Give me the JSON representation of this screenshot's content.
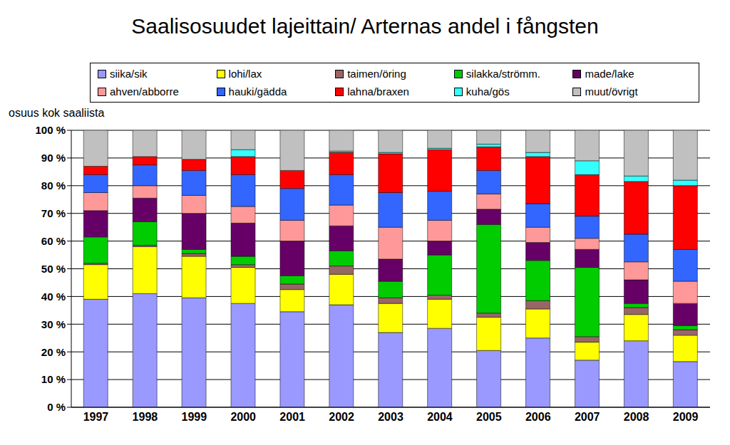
{
  "chart_data": {
    "type": "bar",
    "stacked": true,
    "grid": true,
    "legend": "top",
    "title": "Saalisosuudet lajeittain/ Arternas andel i fångsten",
    "ylabel": "osuus kok saaliista",
    "categories": [
      "1997",
      "1998",
      "1999",
      "2000",
      "2001",
      "2002",
      "2003",
      "2004",
      "2005",
      "2006",
      "2007",
      "2008",
      "2009"
    ],
    "ylim": [
      0,
      100
    ],
    "yticks": [
      {
        "value": 0,
        "label": "0 %"
      },
      {
        "value": 10,
        "label": "10 %"
      },
      {
        "value": 20,
        "label": "20 %"
      },
      {
        "value": 30,
        "label": "30 %"
      },
      {
        "value": 40,
        "label": "40 %"
      },
      {
        "value": 50,
        "label": "50 %"
      },
      {
        "value": 60,
        "label": "60 %"
      },
      {
        "value": 70,
        "label": "70 %"
      },
      {
        "value": 80,
        "label": "80 %"
      },
      {
        "value": 90,
        "label": "90 %"
      },
      {
        "value": 100,
        "label": "100 %"
      }
    ],
    "series": [
      {
        "name": "siika/sik",
        "color": "#9999ff",
        "values": [
          39,
          41,
          39.5,
          37.5,
          34.5,
          37,
          27,
          28.5,
          20.5,
          25,
          17,
          24,
          16.5
        ]
      },
      {
        "name": "lohi/lax",
        "color": "#ffff00",
        "values": [
          12.5,
          17,
          15,
          13,
          8,
          11,
          10.5,
          10.5,
          12,
          10.5,
          6.5,
          9.5,
          9.5
        ]
      },
      {
        "name": "taimen/öring",
        "color": "#996666",
        "values": [
          0.5,
          0.5,
          1,
          1,
          2,
          3,
          2,
          1.5,
          1.5,
          3,
          2,
          2.5,
          2
        ]
      },
      {
        "name": "silakka/strömm.",
        "color": "#00cc00",
        "values": [
          9.5,
          8.5,
          1.5,
          3,
          3,
          5.5,
          6,
          14.5,
          32,
          14.5,
          25,
          1.5,
          1.5
        ]
      },
      {
        "name": "made/lake",
        "color": "#660066",
        "values": [
          9.5,
          8.5,
          13,
          12,
          12.5,
          9,
          8,
          5,
          5.5,
          6.5,
          6.5,
          8.5,
          8
        ]
      },
      {
        "name": "ahven/abborre",
        "color": "#ff9999",
        "values": [
          6.5,
          4.5,
          6.5,
          6,
          7.5,
          7.5,
          11.5,
          7.5,
          5.5,
          5.5,
          4,
          6.5,
          8
        ]
      },
      {
        "name": "hauki/gädda",
        "color": "#3366ff",
        "values": [
          6.5,
          7.5,
          9,
          11.5,
          11.5,
          11,
          12.5,
          10.5,
          8.5,
          8.5,
          8,
          10,
          11.5
        ]
      },
      {
        "name": "lahna/braxen",
        "color": "#ff0000",
        "values": [
          3,
          3,
          4,
          6.5,
          6.5,
          8,
          14,
          15,
          8.5,
          17,
          15,
          19,
          23
        ]
      },
      {
        "name": "kuha/gös",
        "color": "#33ffff",
        "values": [
          0,
          0,
          0,
          2.5,
          0,
          0.5,
          0.5,
          0.5,
          1,
          1.5,
          5,
          2,
          2
        ]
      },
      {
        "name": "muut/övrigt",
        "color": "#c0c0c0",
        "values": [
          13,
          9.5,
          10.5,
          7,
          14.5,
          7.5,
          8,
          6.5,
          5,
          8,
          11,
          16.5,
          18
        ]
      }
    ]
  }
}
